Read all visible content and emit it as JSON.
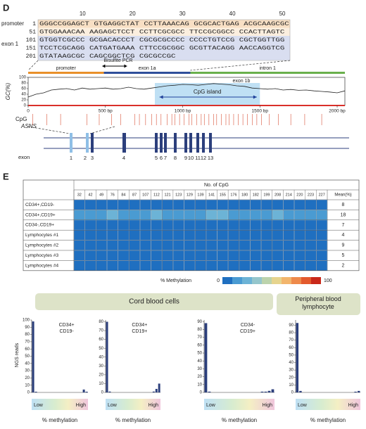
{
  "panel_d": {
    "label": "D",
    "sequence": {
      "column_numbers": [
        10,
        20,
        30,
        40,
        50
      ],
      "region_labels": [
        "promoter",
        "exon 1"
      ],
      "rows": [
        {
          "pos": 1,
          "text": "GGGCCGGAGCT GTGAGGCTAT CCTTAAACAG GCGCACTGAG ACGCAAGCGC"
        },
        {
          "pos": 51,
          "text": "GTGGAAACAA AAGAGCTCCT CCTTCGCGCC TTCCGCGGCC CCACTTAGTC"
        },
        {
          "pos": 101,
          "text": "GTGGTCGCCC GCGACACCCT CGCGCGCCCC CCCCTGTCCG CGCTGGTTGG"
        },
        {
          "pos": 151,
          "text": "TCCTCGCAGG CATGATGAAA CTTCCGCGGC GCGTTACAGG AACCAGGTCG"
        },
        {
          "pos": 201,
          "text": "GTATAAGCGC CAGCGGCTCG CGCGCCGC"
        }
      ]
    },
    "pcr_label": "Bisulfite PCR",
    "regions": [
      {
        "name": "promoter",
        "color": "#e8902a"
      },
      {
        "name": "exon 1a",
        "color": "#2f4f9a"
      },
      {
        "name": "intron 1",
        "color": "#6ab04c"
      }
    ],
    "gc_chart": {
      "type": "line",
      "ylabel": "GC(%)",
      "ylim": [
        0,
        100
      ],
      "yticks": [
        0,
        20,
        40,
        60,
        80,
        100
      ],
      "xlim": [
        0,
        2050
      ],
      "xticks": [
        0,
        {
          "value": 500,
          "label": "500 bp"
        },
        {
          "value": 1000,
          "label": "1000 bp"
        },
        {
          "value": 1500,
          "label": "1500 bp"
        },
        {
          "value": 2000,
          "label": "2000 bp"
        }
      ],
      "x": [
        0,
        50,
        100,
        150,
        200,
        250,
        300,
        350,
        400,
        450,
        500,
        550,
        600,
        650,
        700,
        750,
        800,
        850,
        900,
        950,
        1000,
        1050,
        1100,
        1150,
        1200,
        1250,
        1300,
        1350,
        1400,
        1450,
        1500,
        1550,
        1600,
        1650,
        1700,
        1750,
        1800,
        1850,
        1900,
        1950,
        2000,
        2050
      ],
      "values": [
        30,
        40,
        45,
        55,
        58,
        60,
        55,
        62,
        58,
        60,
        62,
        58,
        60,
        65,
        60,
        58,
        62,
        66,
        70,
        72,
        75,
        74,
        72,
        75,
        78,
        76,
        74,
        70,
        68,
        62,
        60,
        58,
        60,
        55,
        57,
        54,
        55,
        52,
        50,
        48,
        45,
        52
      ],
      "color": "#222222",
      "island": {
        "label": "CpG island",
        "exon_label": "exon 1b"
      }
    },
    "cpg": {
      "label": "CpG",
      "color": "#d9533a",
      "positions": [
        30,
        120,
        210,
        380,
        460,
        540,
        600,
        690,
        720,
        760,
        800,
        830,
        860,
        900,
        930,
        950,
        980,
        1010,
        1040,
        1060,
        1090,
        1120,
        1140,
        1170,
        1200,
        1220,
        1250,
        1280,
        1300,
        1330,
        1360,
        1390,
        1420,
        1450,
        1480,
        1510,
        1560,
        1620,
        1700,
        1790,
        1900
      ]
    },
    "gene": {
      "name": "ASNS",
      "exon_label": "exon",
      "exons": [
        1,
        2,
        3,
        4,
        5,
        6,
        7,
        8,
        9,
        10,
        11,
        12,
        13
      ]
    }
  },
  "panel_e": {
    "label": "E",
    "table": {
      "header": "No. of CpG",
      "mean_header": "Mean(%)",
      "columns": [
        32,
        42,
        49,
        76,
        84,
        87,
        107,
        112,
        121,
        123,
        129,
        139,
        141,
        155,
        176,
        180,
        182,
        199,
        208,
        214,
        220,
        223,
        227
      ],
      "rows": [
        {
          "label": "CD34+,CD19-",
          "values": [
            8,
            6,
            7,
            9,
            8,
            7,
            8,
            9,
            6,
            8,
            7,
            8,
            9,
            8,
            7,
            8,
            9,
            8,
            7,
            8,
            9,
            8,
            7
          ],
          "mean": 8
        },
        {
          "label": "CD34+,CD19+",
          "values": [
            16,
            18,
            15,
            20,
            19,
            17,
            18,
            22,
            16,
            19,
            18,
            17,
            21,
            20,
            18,
            19,
            16,
            18,
            20,
            17,
            19,
            18,
            17
          ],
          "mean": 18
        },
        {
          "label": "CD34-,CD19+",
          "values": [
            7,
            6,
            8,
            7,
            6,
            7,
            8,
            7,
            6,
            8,
            7,
            6,
            8,
            7,
            6,
            7,
            8,
            7,
            6,
            7,
            8,
            7,
            6
          ],
          "mean": 7
        },
        {
          "label": "Lymphocytes #1",
          "values": [
            4,
            3,
            5,
            4,
            3,
            4,
            5,
            4,
            3,
            4,
            5,
            4,
            3,
            4,
            5,
            4,
            3,
            4,
            5,
            4,
            3,
            4,
            5
          ],
          "mean": 4
        },
        {
          "label": "Lymphocytes #2",
          "values": [
            9,
            8,
            9,
            8,
            9,
            8,
            9,
            8,
            9,
            8,
            9,
            8,
            9,
            8,
            9,
            8,
            9,
            8,
            9,
            8,
            9,
            8,
            9
          ],
          "mean": 9
        },
        {
          "label": "Lymphocytes #3",
          "values": [
            5,
            4,
            6,
            5,
            4,
            5,
            6,
            5,
            4,
            5,
            6,
            5,
            4,
            5,
            6,
            5,
            4,
            5,
            6,
            5,
            4,
            5,
            6
          ],
          "mean": 5
        },
        {
          "label": "Lymphocytes #4",
          "values": [
            2,
            1,
            3,
            2,
            1,
            2,
            3,
            2,
            1,
            2,
            3,
            2,
            1,
            2,
            3,
            2,
            1,
            2,
            3,
            2,
            1,
            2,
            3
          ],
          "mean": 2
        }
      ]
    },
    "legend": {
      "title": "% Methylation",
      "min": 0,
      "max": 100,
      "colors": [
        "#1f6fc0",
        "#4a9bd2",
        "#6cb3d6",
        "#95c6cc",
        "#bcd3ac",
        "#e6d48e",
        "#f2b56c",
        "#ee8a4b",
        "#e35a2d",
        "#c9281a"
      ]
    },
    "groups": [
      "Cord blood cells",
      "Peripheral blood lymphocyte"
    ],
    "histograms": {
      "type": "bar",
      "ylabel": "NGS reads",
      "xlabel": "% methylation",
      "low": "Low",
      "high": "High",
      "color": "#2c3f7c",
      "panels": [
        {
          "title": [
            "CD34+",
            "CD19-"
          ],
          "ylim": [
            0,
            100
          ],
          "yticks": [
            0,
            10,
            20,
            30,
            40,
            50,
            60,
            70,
            80,
            90,
            100
          ],
          "values": [
            98,
            1,
            0,
            0,
            0,
            0,
            0,
            0,
            0,
            0,
            0,
            0,
            0,
            0,
            0,
            0,
            0,
            0,
            4,
            1
          ]
        },
        {
          "title": [
            "CD34+",
            "CD19+"
          ],
          "ylim": [
            0,
            82
          ],
          "yticks": [
            0,
            10,
            20,
            30,
            40,
            50,
            60,
            70,
            80
          ],
          "values": [
            80,
            1,
            0,
            0,
            0,
            0,
            0,
            0,
            0,
            0,
            0,
            0,
            0,
            0,
            0,
            0,
            0,
            1,
            4,
            10
          ]
        },
        {
          "title": [
            "CD34-",
            "CD19+"
          ],
          "ylim": [
            0,
            92
          ],
          "yticks": [
            0,
            10,
            20,
            30,
            40,
            50,
            60,
            70,
            80,
            90
          ],
          "values": [
            88,
            1,
            0,
            0,
            0,
            0,
            0,
            0,
            0,
            0,
            0,
            0,
            0,
            0,
            0,
            0,
            1,
            1,
            2,
            4
          ]
        },
        {
          "title": [],
          "ylim": [
            0,
            97
          ],
          "yticks": [
            0,
            10,
            20,
            30,
            40,
            50,
            60,
            70,
            80,
            90
          ],
          "values": [
            93,
            2,
            0,
            0,
            0,
            0,
            0,
            0,
            0,
            0,
            0,
            0,
            0,
            0,
            0,
            0,
            0,
            0,
            1,
            2
          ]
        }
      ]
    }
  }
}
